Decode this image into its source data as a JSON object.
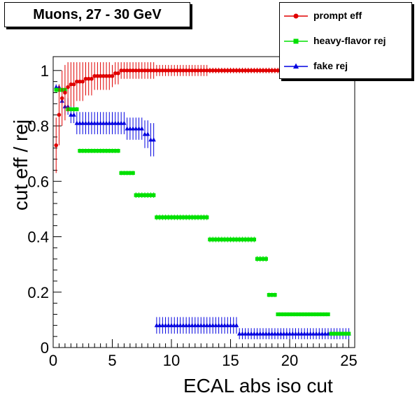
{
  "title": "Muons, 27 - 30 GeV",
  "legend": [
    {
      "label": "prompt eff",
      "color": "#e00000",
      "marker": "circle"
    },
    {
      "label": "heavy-flavor rej",
      "color": "#00e000",
      "marker": "square"
    },
    {
      "label": "fake rej",
      "color": "#0000e0",
      "marker": "triangle"
    }
  ],
  "chart_data": {
    "type": "scatter",
    "title": "Muons, 27 - 30 GeV",
    "xlabel": "ECAL abs iso cut",
    "ylabel": "cut eff / rej",
    "xlim": [
      0,
      25.5
    ],
    "ylim": [
      0,
      1.05
    ],
    "xticks": [
      0,
      5,
      10,
      15,
      20,
      25
    ],
    "yticks": [
      0,
      0.2,
      0.4,
      0.6,
      0.8,
      1
    ],
    "xticklabels": [
      "0",
      "5",
      "10",
      "15",
      "20",
      "25"
    ],
    "yticklabels": [
      "0",
      "0.2",
      "0.4",
      "0.6",
      "0.8",
      "1"
    ],
    "grid": false,
    "legend_position": "top-right",
    "series": [
      {
        "name": "prompt eff",
        "color": "#e00000",
        "marker": "circle",
        "points": [
          [
            0.25,
            0.73,
            0.1
          ],
          [
            0.5,
            0.84,
            0.11
          ],
          [
            0.75,
            0.9,
            0.1
          ],
          [
            1.0,
            0.92,
            0.1
          ],
          [
            1.25,
            0.94,
            0.09
          ],
          [
            1.5,
            0.95,
            0.08
          ],
          [
            1.75,
            0.95,
            0.08
          ],
          [
            2.0,
            0.96,
            0.07
          ],
          [
            2.25,
            0.96,
            0.07
          ],
          [
            2.5,
            0.96,
            0.07
          ],
          [
            2.75,
            0.97,
            0.06
          ],
          [
            3.0,
            0.97,
            0.06
          ],
          [
            3.25,
            0.97,
            0.06
          ],
          [
            3.5,
            0.98,
            0.05
          ],
          [
            3.75,
            0.98,
            0.05
          ],
          [
            4.0,
            0.98,
            0.05
          ],
          [
            4.25,
            0.98,
            0.05
          ],
          [
            4.5,
            0.98,
            0.05
          ],
          [
            4.75,
            0.98,
            0.05
          ],
          [
            5.0,
            0.98,
            0.04
          ],
          [
            5.25,
            0.99,
            0.04
          ],
          [
            5.5,
            0.99,
            0.04
          ],
          [
            5.75,
            1.0,
            0.03
          ],
          [
            6.0,
            1.0,
            0.03
          ],
          [
            6.25,
            1.0,
            0.03
          ],
          [
            6.5,
            1.0,
            0.03
          ],
          [
            6.75,
            1.0,
            0.03
          ],
          [
            7.0,
            1.0,
            0.03
          ],
          [
            7.25,
            1.0,
            0.03
          ],
          [
            7.5,
            1.0,
            0.03
          ],
          [
            7.75,
            1.0,
            0.03
          ],
          [
            8.0,
            1.0,
            0.03
          ],
          [
            8.25,
            1.0,
            0.03
          ],
          [
            8.5,
            1.0,
            0.03
          ],
          [
            8.75,
            1.0,
            0.02
          ],
          [
            9.0,
            1.0,
            0.02
          ],
          [
            9.25,
            1.0,
            0.02
          ],
          [
            9.5,
            1.0,
            0.02
          ],
          [
            9.75,
            1.0,
            0.02
          ],
          [
            10.0,
            1.0,
            0.02
          ],
          [
            10.25,
            1.0,
            0.02
          ],
          [
            10.5,
            1.0,
            0.02
          ],
          [
            10.75,
            1.0,
            0.02
          ],
          [
            11.0,
            1.0,
            0.02
          ],
          [
            11.25,
            1.0,
            0.02
          ],
          [
            11.5,
            1.0,
            0.02
          ],
          [
            11.75,
            1.0,
            0.02
          ],
          [
            12.0,
            1.0,
            0.02
          ],
          [
            12.25,
            1.0,
            0.02
          ],
          [
            12.5,
            1.0,
            0.02
          ],
          [
            12.75,
            1.0,
            0.02
          ],
          [
            13.0,
            1.0,
            0.02
          ],
          [
            13.25,
            1.0,
            0.01
          ],
          [
            13.5,
            1.0,
            0.01
          ],
          [
            13.75,
            1.0,
            0.01
          ],
          [
            14.0,
            1.0,
            0.01
          ],
          [
            14.25,
            1.0,
            0.01
          ],
          [
            14.5,
            1.0,
            0.01
          ],
          [
            14.75,
            1.0,
            0.01
          ],
          [
            15.0,
            1.0,
            0.01
          ],
          [
            15.25,
            1.0,
            0.01
          ],
          [
            15.5,
            1.0,
            0.01
          ],
          [
            15.75,
            1.0,
            0.01
          ],
          [
            16.0,
            1.0,
            0.01
          ],
          [
            16.25,
            1.0,
            0.01
          ],
          [
            16.5,
            1.0,
            0.01
          ],
          [
            16.75,
            1.0,
            0.01
          ],
          [
            17.0,
            1.0,
            0.01
          ],
          [
            17.25,
            1.0,
            0.01
          ],
          [
            17.5,
            1.0,
            0.01
          ],
          [
            17.75,
            1.0,
            0.01
          ],
          [
            18.0,
            1.0,
            0.01
          ],
          [
            18.25,
            1.0,
            0.01
          ],
          [
            18.5,
            1.0,
            0.01
          ],
          [
            18.75,
            1.0,
            0.01
          ],
          [
            19.0,
            1.0,
            0.01
          ],
          [
            19.25,
            1.0,
            0.01
          ],
          [
            19.5,
            1.0,
            0.01
          ],
          [
            19.75,
            1.0,
            0.01
          ],
          [
            20.0,
            1.0,
            0.01
          ],
          [
            20.25,
            1.0,
            0.01
          ],
          [
            20.5,
            1.0,
            0.01
          ],
          [
            20.75,
            1.0,
            0.01
          ],
          [
            21.0,
            1.0,
            0.01
          ],
          [
            21.25,
            1.0,
            0.01
          ],
          [
            21.5,
            1.0,
            0.01
          ],
          [
            21.75,
            1.0,
            0.01
          ],
          [
            22.0,
            1.0,
            0.01
          ],
          [
            22.25,
            1.0,
            0.01
          ],
          [
            22.5,
            1.0,
            0.01
          ],
          [
            22.75,
            1.0,
            0.01
          ],
          [
            23.0,
            1.0,
            0.01
          ],
          [
            23.25,
            1.0,
            0.01
          ],
          [
            23.5,
            1.0,
            0.01
          ],
          [
            23.75,
            1.0,
            0.01
          ],
          [
            24.0,
            1.0,
            0.01
          ],
          [
            24.25,
            1.0,
            0.01
          ],
          [
            24.5,
            1.0,
            0.01
          ],
          [
            24.75,
            1.0,
            0.01
          ],
          [
            25.0,
            1.0,
            0.01
          ]
        ]
      },
      {
        "name": "heavy-flavor rej",
        "color": "#00e000",
        "marker": "square",
        "segments": [
          {
            "from": 0.25,
            "to": 1.0,
            "y": 0.93,
            "err": 0.01
          },
          {
            "from": 1.25,
            "to": 2.0,
            "y": 0.86,
            "err": 0.008
          },
          {
            "from": 2.25,
            "to": 5.5,
            "y": 0.71,
            "err": 0.008
          },
          {
            "from": 5.75,
            "to": 6.75,
            "y": 0.63,
            "err": 0.008
          },
          {
            "from": 7.0,
            "to": 8.5,
            "y": 0.55,
            "err": 0.01
          },
          {
            "from": 8.75,
            "to": 13.0,
            "y": 0.47,
            "err": 0.01
          },
          {
            "from": 13.25,
            "to": 17.0,
            "y": 0.39,
            "err": 0.01
          },
          {
            "from": 17.25,
            "to": 18.0,
            "y": 0.32,
            "err": 0.01
          },
          {
            "from": 18.25,
            "to": 18.75,
            "y": 0.19,
            "err": 0.008
          },
          {
            "from": 19.0,
            "to": 23.25,
            "y": 0.12,
            "err": 0.006
          },
          {
            "from": 23.5,
            "to": 25.0,
            "y": 0.05,
            "err": 0.006
          }
        ]
      },
      {
        "name": "fake rej",
        "color": "#0000e0",
        "marker": "triangle",
        "segments": [
          {
            "from": 0.25,
            "to": 0.5,
            "y": 0.94,
            "err": 0.01
          },
          {
            "from": 0.75,
            "to": 0.75,
            "y": 0.89,
            "err": 0.01
          },
          {
            "from": 1.0,
            "to": 1.25,
            "y": 0.87,
            "err": 0.03
          },
          {
            "from": 1.5,
            "to": 1.75,
            "y": 0.84,
            "err": 0.03
          },
          {
            "from": 2.0,
            "to": 6.0,
            "y": 0.81,
            "err": 0.04
          },
          {
            "from": 6.25,
            "to": 7.5,
            "y": 0.79,
            "err": 0.04
          },
          {
            "from": 7.75,
            "to": 8.0,
            "y": 0.77,
            "err": 0.05
          },
          {
            "from": 8.25,
            "to": 8.5,
            "y": 0.75,
            "err": 0.06
          },
          {
            "from": 8.75,
            "to": 15.5,
            "y": 0.08,
            "err": 0.03
          },
          {
            "from": 15.75,
            "to": 25.0,
            "y": 0.05,
            "err": 0.02
          }
        ]
      }
    ]
  }
}
